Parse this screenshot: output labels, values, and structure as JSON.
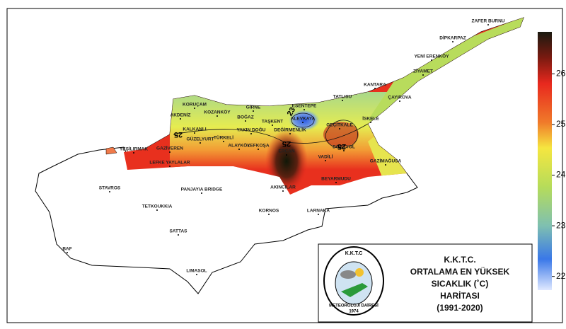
{
  "places": [
    "ZAFER BURNU",
    "DİPKARPAZ",
    "YENİ ERENKÖY",
    "ZİYAMET",
    "KANTARA",
    "TATLISU",
    "ÇAYIROVA",
    "KORUÇAM",
    "GİRNE",
    "ESENTEPE",
    "AKDENİZ",
    "KOZANKÖY",
    "BOĞAZ",
    "ALEVKAYA",
    "İSKELE",
    "TAŞKENT",
    "GEÇİTKALE",
    "KALKANLI",
    "YAKIN DOĞU",
    "DEĞİRMENLİK",
    "GÜZELYURT",
    "TÜRKELİ",
    "DÖRTYOL",
    "ALAYKÖY",
    "LEFKOŞA",
    "YEŞİLIRMAK",
    "GAZİVEREN",
    "ERCAN",
    "VADİLİ",
    "LEFKE YAYLALAR",
    "GAZİMAĞUSA",
    "BEYARMUDU",
    "AKINCILAR",
    "STAVROS",
    "PANJAYIA BRIDGE",
    "TETKOUKKIA",
    "KORNOS",
    "LARNAKA",
    "SATTAS",
    "BAF",
    "LIMASOL"
  ],
  "contours": [
    "23",
    "25",
    "25",
    "25"
  ],
  "colorbar": {
    "range": [
      21.73,
      26.83
    ],
    "ticks": [
      22,
      23,
      24,
      25,
      26
    ]
  },
  "legend": {
    "lines": [
      "K.K.T.C.",
      "ORTALAMA EN YÜKSEK",
      "SICAKLIK (˚C)",
      "HARİTASI",
      "(1991-2020)"
    ]
  },
  "logo": {
    "top": "K.K.T.C",
    "bottom": "METEOROLOJİ DAİRESİ",
    "year": "1974"
  }
}
